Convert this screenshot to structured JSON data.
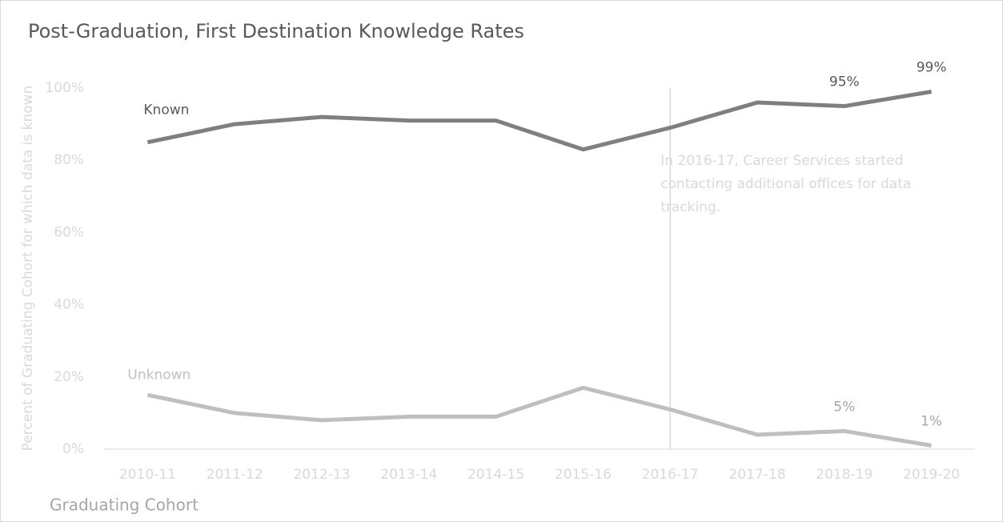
{
  "chart_data": {
    "type": "line",
    "title": "Post-Graduation, First Destination Knowledge Rates",
    "x_label": "Graduating Cohort",
    "y_label": "Percent of Graduating Cohort for which data is known",
    "categories": [
      "2010-11",
      "2011-12",
      "2012-13",
      "2013-14",
      "2014-15",
      "2015-16",
      "2016-17",
      "2017-18",
      "2018-19",
      "2019-20"
    ],
    "series": [
      {
        "name": "Known",
        "color": "#7f7f7f",
        "values": [
          85,
          90,
          92,
          91,
          91,
          83,
          89,
          96,
          95,
          99
        ],
        "value_labels": [
          null,
          null,
          null,
          null,
          null,
          null,
          null,
          null,
          "95%",
          "99%"
        ]
      },
      {
        "name": "Unknown",
        "color": "#bfbfbf",
        "values": [
          15,
          10,
          8,
          9,
          9,
          17,
          11,
          4,
          5,
          1
        ],
        "value_labels": [
          null,
          null,
          null,
          null,
          null,
          null,
          null,
          null,
          "5%",
          "1%"
        ]
      }
    ],
    "ylim": [
      0,
      100
    ],
    "yticks": [
      {
        "value": 0,
        "label": "0%"
      },
      {
        "value": 20,
        "label": "20%"
      },
      {
        "value": 40,
        "label": "40%"
      },
      {
        "value": 60,
        "label": "60%"
      },
      {
        "value": 80,
        "label": "80%"
      },
      {
        "value": 100,
        "label": "100%"
      }
    ],
    "grid": false,
    "annotation": {
      "at": "2016-17",
      "lines": [
        "In 2016-17, Career Services started",
        "contacting additional offices for data",
        "tracking."
      ]
    }
  }
}
